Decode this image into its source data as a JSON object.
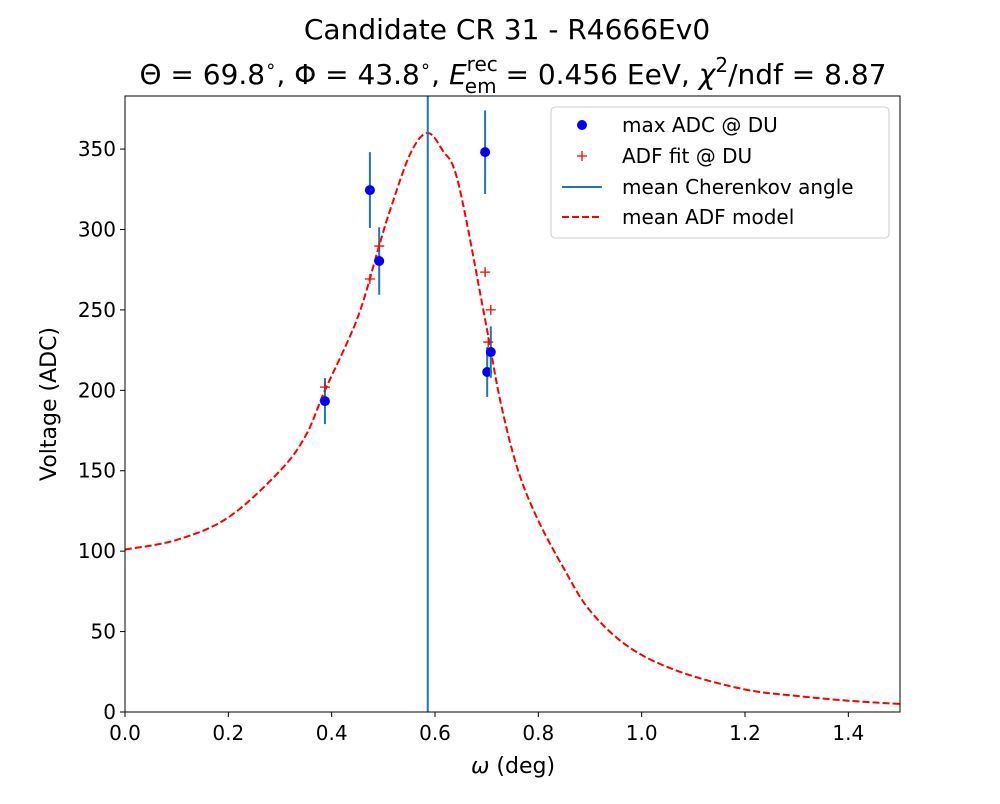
{
  "chart_data": {
    "type": "scatter",
    "title": "Candidate CR 31 - R4666Ev0",
    "subtitle": {
      "theta_label": "Θ",
      "theta_value": "69.8",
      "phi_label": "Φ",
      "phi_value": "43.8",
      "energy_label": "E",
      "energy_sub": "em",
      "energy_sup": "rec",
      "energy_value": "0.456 EeV",
      "chi_label": "χ",
      "chi_sup": "2",
      "chi_suffix": "/ndf",
      "chi_value": "8.87"
    },
    "xlabel_symbol": "ω",
    "xlabel": " (deg)",
    "ylabel": "Voltage (ADC)",
    "xlim": [
      0,
      1.5
    ],
    "ylim": [
      0,
      383
    ],
    "xticks": [
      "0.0",
      "0.2",
      "0.4",
      "0.6",
      "0.8",
      "1.0",
      "1.2",
      "1.4"
    ],
    "yticks": [
      "0",
      "50",
      "100",
      "150",
      "200",
      "250",
      "300",
      "350"
    ],
    "grid": false,
    "legend_position": "top-right",
    "legend": [
      "max ADC @ DU",
      "ADF fit @ DU",
      "mean Cherenkov angle",
      "mean ADF model"
    ],
    "series": [
      {
        "name": "max ADC @ DU",
        "kind": "errorbar",
        "color": "#0000ff",
        "errcolor": "#1f77b4",
        "x": [
          0.387,
          0.474,
          0.492,
          0.697,
          0.701,
          0.708
        ],
        "y": [
          193.3,
          324.5,
          280.4,
          348.1,
          211.4,
          223.8
        ],
        "yerr": [
          14.3,
          23.6,
          21.0,
          26.0,
          15.5,
          16.0
        ]
      },
      {
        "name": "ADF fit @ DU",
        "kind": "markers",
        "color": "#ff0000",
        "x": [
          0.387,
          0.474,
          0.492,
          0.697,
          0.703,
          0.708
        ],
        "y": [
          202.0,
          269.2,
          289.7,
          273.5,
          230.0,
          250.0
        ]
      },
      {
        "name": "mean Cherenkov angle",
        "kind": "vline",
        "color": "#1f77b4",
        "x": 0.586
      },
      {
        "name": "mean ADF model",
        "kind": "dashed-line",
        "color": "#ff0000",
        "x": [
          0,
          0.1,
          0.2,
          0.3,
          0.35,
          0.387,
          0.45,
          0.492,
          0.513,
          0.552,
          0.585,
          0.615,
          0.645,
          0.697,
          0.726,
          0.759,
          0.797,
          0.848,
          0.9,
          0.977,
          1.074,
          1.2,
          1.3,
          1.4,
          1.5
        ],
        "y": [
          101,
          107,
          121,
          150,
          172,
          200,
          245,
          290,
          312,
          347,
          360,
          349,
          329,
          244,
          194,
          152,
          121,
          90,
          63,
          40,
          25,
          14,
          10,
          7,
          5
        ]
      }
    ]
  }
}
